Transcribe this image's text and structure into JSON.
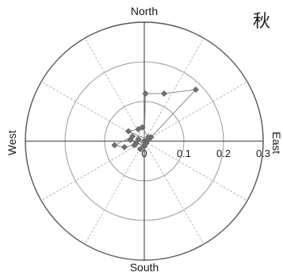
{
  "chart_data": {
    "type": "polar",
    "season_label": "秋",
    "direction_labels": {
      "north": "North",
      "south": "South",
      "east": "East",
      "west": "West"
    },
    "radial_ticks": [
      "0",
      "0.1",
      "0.2",
      "0.3"
    ],
    "radial_range": [
      0,
      0.3
    ],
    "grid": true,
    "angular_grid_step_deg": 30,
    "colors": {
      "series": "#707070",
      "grid": "#9a9a9a"
    },
    "series": [
      {
        "points": [
          {
            "x": 0.0,
            "y": 0.0
          },
          {
            "x": 0.003,
            "y": 0.12
          },
          {
            "x": 0.05,
            "y": 0.12
          },
          {
            "x": 0.13,
            "y": 0.13
          },
          {
            "x": 0.017,
            "y": 0.01
          },
          {
            "x": 0.005,
            "y": -0.005
          },
          {
            "x": 0.008,
            "y": 0.002
          },
          {
            "x": -0.015,
            "y": 0.005
          },
          {
            "x": 0.0,
            "y": -0.013
          },
          {
            "x": -0.02,
            "y": -0.005
          },
          {
            "x": -0.035,
            "y": 0.003
          },
          {
            "x": -0.03,
            "y": 0.012
          },
          {
            "x": -0.075,
            "y": -0.01
          },
          {
            "x": -0.05,
            "y": -0.015
          },
          {
            "x": -0.025,
            "y": -0.01
          },
          {
            "x": -0.01,
            "y": -0.02
          },
          {
            "x": 0.0,
            "y": -0.01
          },
          {
            "x": 0.01,
            "y": 0.003
          },
          {
            "x": -0.04,
            "y": 0.025
          },
          {
            "x": -0.015,
            "y": 0.03
          },
          {
            "x": -0.005,
            "y": 0.035
          },
          {
            "x": 0.01,
            "y": 0.01
          }
        ]
      }
    ]
  }
}
